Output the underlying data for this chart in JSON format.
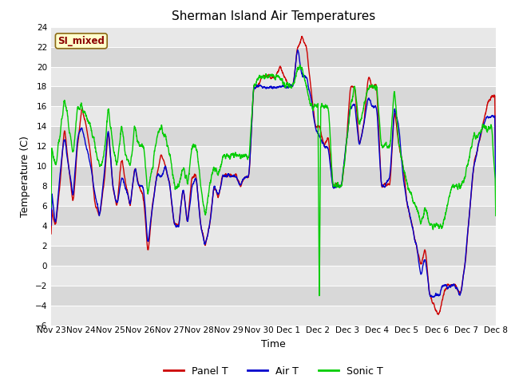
{
  "title": "Sherman Island Air Temperatures",
  "xlabel": "Time",
  "ylabel": "Temperature (C)",
  "ylim": [
    -6,
    24
  ],
  "yticks": [
    -6,
    -4,
    -2,
    0,
    2,
    4,
    6,
    8,
    10,
    12,
    14,
    16,
    18,
    20,
    22,
    24
  ],
  "xtick_labels": [
    "Nov 23",
    "Nov 24",
    "Nov 25",
    "Nov 26",
    "Nov 27",
    "Nov 28",
    "Nov 29",
    "Nov 30",
    "Dec 1",
    "Dec 2",
    "Dec 3",
    "Dec 4",
    "Dec 5",
    "Dec 6",
    "Dec 7",
    "Dec 8"
  ],
  "background_color": "#ffffff",
  "plot_bg_color": "#e0e0e0",
  "band_color_light": "#e8e8e8",
  "band_color_dark": "#d8d8d8",
  "grid_color": "#ffffff",
  "line_colors": {
    "panel": "#cc0000",
    "air": "#0000cc",
    "sonic": "#00cc00"
  },
  "line_width": 1.0,
  "legend_label": "SI_mixed",
  "legend_box_color": "#ffffcc",
  "legend_box_edge": "#8b6914",
  "legend_text_color": "#8b0000",
  "seed": 42,
  "title_fontsize": 11,
  "axis_fontsize": 9,
  "tick_fontsize": 7.5
}
